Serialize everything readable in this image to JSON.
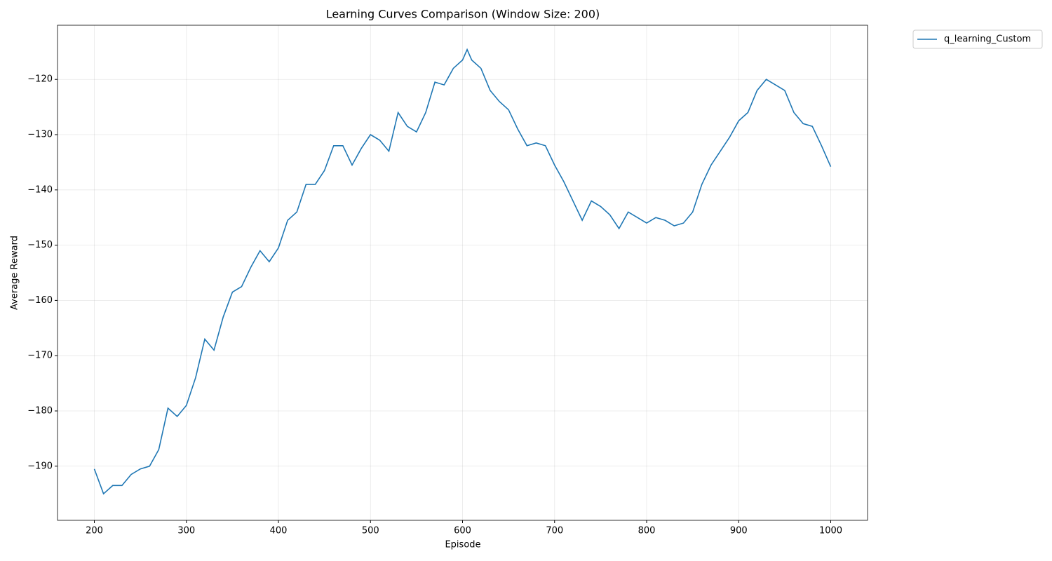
{
  "chart_data": {
    "type": "line",
    "title": "Learning Curves Comparison (Window Size: 200)",
    "x_label": "Episode",
    "y_label": "Average Reward",
    "x": [
      200,
      210,
      220,
      230,
      240,
      250,
      260,
      270,
      280,
      290,
      300,
      310,
      320,
      330,
      340,
      350,
      360,
      370,
      380,
      390,
      400,
      410,
      420,
      430,
      440,
      450,
      460,
      470,
      480,
      490,
      500,
      510,
      520,
      530,
      540,
      550,
      560,
      570,
      580,
      590,
      600,
      605,
      610,
      620,
      630,
      640,
      650,
      660,
      670,
      680,
      690,
      700,
      710,
      720,
      730,
      740,
      750,
      760,
      770,
      780,
      790,
      800,
      810,
      820,
      830,
      840,
      850,
      860,
      870,
      880,
      890,
      900,
      910,
      920,
      930,
      940,
      950,
      960,
      970,
      980,
      990,
      1000
    ],
    "series": [
      {
        "name": "q_learning_Custom",
        "color": "#1f77b4",
        "values": [
          -190.5,
          -195,
          -193.5,
          -193.5,
          -191.5,
          -190.5,
          -190,
          -187,
          -179.5,
          -181,
          -179,
          -174,
          -167,
          -169,
          -163,
          -158.5,
          -157.5,
          -154,
          -151,
          -153,
          -150.5,
          -145.5,
          -144,
          -139,
          -139,
          -136.5,
          -132,
          -132,
          -135.5,
          -132.5,
          -130,
          -131,
          -133,
          -126,
          -128.5,
          -129.5,
          -126,
          -120.5,
          -121,
          -118,
          -116.5,
          -114.6,
          -116.5,
          -118,
          -122,
          -124,
          -125.5,
          -129,
          -132,
          -131.5,
          -132,
          -135.5,
          -138.5,
          -142,
          -145.5,
          -142,
          -143,
          -144.5,
          -147,
          -144,
          -145,
          -146,
          -145,
          -145.5,
          -146.5,
          -146,
          -144,
          -139,
          -135.5,
          -133,
          -130.5,
          -127.5,
          -126,
          -122,
          -120,
          -121,
          -122,
          -126,
          -128,
          -128.5,
          -132,
          -135.8
        ]
      }
    ],
    "xlim": [
      160,
      1040
    ],
    "ylim": [
      -199.8,
      -110.2
    ],
    "xticks": [
      200,
      300,
      400,
      500,
      600,
      700,
      800,
      900,
      1000
    ],
    "yticks": [
      {
        "value": -190,
        "label": "−190"
      },
      {
        "value": -180,
        "label": "−180"
      },
      {
        "value": -170,
        "label": "−170"
      },
      {
        "value": -160,
        "label": "−160"
      },
      {
        "value": -150,
        "label": "−150"
      },
      {
        "value": -140,
        "label": "−140"
      },
      {
        "value": -130,
        "label": "−130"
      },
      {
        "value": -120,
        "label": "−120"
      }
    ],
    "grid": true,
    "legend": "outside-upper-right"
  }
}
